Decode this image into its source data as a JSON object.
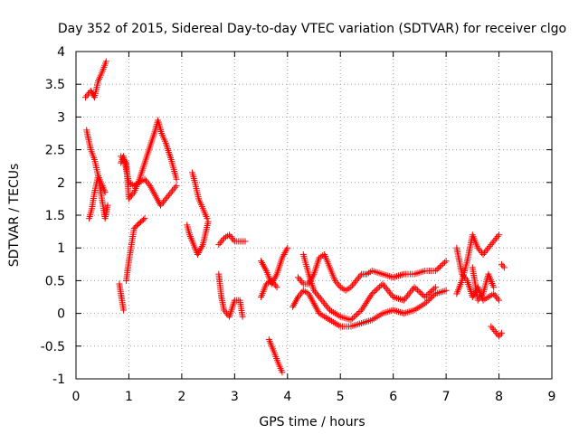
{
  "chart_data": {
    "type": "scatter",
    "title": "Day 352 of 2015, Sidereal Day-to-day VTEC variation (SDTVAR) for receiver clgo",
    "xlabel": "GPS time / hours",
    "ylabel": "SDTVAR / TECUs",
    "xlim": [
      0,
      9
    ],
    "ylim": [
      -1,
      4
    ],
    "grid": true,
    "marker": "+",
    "color": "#ff0000",
    "xticks": [
      0,
      1,
      2,
      3,
      4,
      5,
      6,
      7,
      8,
      9
    ],
    "xtick_labels": [
      "0",
      "1",
      "2",
      "3",
      "4",
      "5",
      "6",
      "7",
      "8",
      "9"
    ],
    "yticks": [
      -1,
      -0.5,
      0,
      0.5,
      1,
      1.5,
      2,
      2.5,
      3,
      3.5,
      4
    ],
    "ytick_labels": [
      "-1",
      "-0.5",
      "0",
      "0.5",
      "1",
      "1.5",
      "2",
      "2.5",
      "3",
      "3.5",
      "4"
    ],
    "tracks": [
      [
        [
          0.18,
          3.3
        ],
        [
          0.28,
          3.4
        ],
        [
          0.35,
          3.3
        ],
        [
          0.42,
          3.55
        ],
        [
          0.5,
          3.7
        ],
        [
          0.57,
          3.85
        ]
      ],
      [
        [
          0.2,
          2.8
        ],
        [
          0.28,
          2.5
        ],
        [
          0.35,
          2.35
        ],
        [
          0.42,
          2.1
        ],
        [
          0.5,
          1.95
        ],
        [
          0.55,
          1.85
        ]
      ],
      [
        [
          0.25,
          1.45
        ],
        [
          0.3,
          1.6
        ],
        [
          0.35,
          1.85
        ],
        [
          0.42,
          2.1
        ],
        [
          0.5,
          1.7
        ],
        [
          0.55,
          1.45
        ],
        [
          0.6,
          1.65
        ]
      ],
      [
        [
          0.82,
          0.45
        ],
        [
          0.86,
          0.25
        ],
        [
          0.9,
          0.05
        ]
      ],
      [
        [
          0.85,
          2.3
        ],
        [
          0.9,
          2.4
        ],
        [
          0.95,
          2.2
        ],
        [
          1.0,
          2.0
        ],
        [
          1.1,
          1.95
        ],
        [
          1.2,
          2.0
        ],
        [
          1.3,
          2.05
        ],
        [
          1.4,
          1.95
        ],
        [
          1.5,
          1.8
        ],
        [
          1.6,
          1.65
        ],
        [
          1.7,
          1.75
        ],
        [
          1.8,
          1.85
        ],
        [
          1.9,
          1.95
        ]
      ],
      [
        [
          0.85,
          2.4
        ],
        [
          0.95,
          2.3
        ],
        [
          1.0,
          1.75
        ],
        [
          1.1,
          1.85
        ],
        [
          1.2,
          2.05
        ],
        [
          1.3,
          2.3
        ],
        [
          1.4,
          2.55
        ],
        [
          1.5,
          2.8
        ],
        [
          1.55,
          2.95
        ],
        [
          1.62,
          2.75
        ],
        [
          1.7,
          2.6
        ],
        [
          1.8,
          2.35
        ],
        [
          1.9,
          2.05
        ]
      ],
      [
        [
          0.95,
          0.5
        ],
        [
          1.0,
          0.8
        ],
        [
          1.05,
          1.05
        ],
        [
          1.1,
          1.3
        ],
        [
          1.2,
          1.38
        ],
        [
          1.3,
          1.45
        ]
      ],
      [
        [
          2.1,
          1.35
        ],
        [
          2.15,
          1.2
        ],
        [
          2.2,
          1.1
        ],
        [
          2.3,
          0.9
        ],
        [
          2.4,
          1.05
        ],
        [
          2.5,
          1.4
        ]
      ],
      [
        [
          2.2,
          2.15
        ],
        [
          2.25,
          2.0
        ],
        [
          2.32,
          1.75
        ],
        [
          2.4,
          1.6
        ],
        [
          2.48,
          1.45
        ]
      ],
      [
        [
          2.7,
          1.05
        ],
        [
          2.8,
          1.15
        ],
        [
          2.9,
          1.2
        ],
        [
          3.0,
          1.1
        ],
        [
          3.1,
          1.1
        ],
        [
          3.2,
          1.1
        ]
      ],
      [
        [
          2.7,
          0.6
        ],
        [
          2.75,
          0.25
        ],
        [
          2.8,
          0.05
        ],
        [
          2.9,
          -0.05
        ],
        [
          3.0,
          0.2
        ],
        [
          3.1,
          0.2
        ],
        [
          3.15,
          -0.05
        ]
      ],
      [
        [
          3.5,
          0.8
        ],
        [
          3.6,
          0.65
        ],
        [
          3.7,
          0.45
        ],
        [
          3.8,
          0.6
        ],
        [
          3.9,
          0.85
        ],
        [
          4.0,
          1.0
        ]
      ],
      [
        [
          3.5,
          0.25
        ],
        [
          3.6,
          0.45
        ],
        [
          3.7,
          0.5
        ],
        [
          3.8,
          0.4
        ]
      ],
      [
        [
          3.65,
          -0.4
        ],
        [
          3.75,
          -0.6
        ],
        [
          3.82,
          -0.75
        ],
        [
          3.9,
          -0.9
        ]
      ],
      [
        [
          4.2,
          0.55
        ],
        [
          4.3,
          0.45
        ],
        [
          4.4,
          0.45
        ],
        [
          4.5,
          0.6
        ],
        [
          4.6,
          0.85
        ],
        [
          4.7,
          0.9
        ],
        [
          4.8,
          0.7
        ],
        [
          4.9,
          0.5
        ],
        [
          5.0,
          0.4
        ],
        [
          5.1,
          0.35
        ],
        [
          5.2,
          0.4
        ],
        [
          5.3,
          0.5
        ],
        [
          5.4,
          0.6
        ],
        [
          5.5,
          0.6
        ],
        [
          5.6,
          0.65
        ],
        [
          5.8,
          0.6
        ],
        [
          6.0,
          0.55
        ],
        [
          6.2,
          0.6
        ],
        [
          6.4,
          0.6
        ],
        [
          6.6,
          0.65
        ],
        [
          6.8,
          0.65
        ],
        [
          7.0,
          0.8
        ]
      ],
      [
        [
          4.1,
          0.1
        ],
        [
          4.2,
          0.25
        ],
        [
          4.3,
          0.35
        ],
        [
          4.4,
          0.3
        ],
        [
          4.5,
          0.15
        ],
        [
          4.6,
          0.0
        ],
        [
          4.7,
          -0.05
        ],
        [
          4.8,
          -0.1
        ],
        [
          4.9,
          -0.15
        ],
        [
          5.0,
          -0.2
        ],
        [
          5.2,
          -0.2
        ],
        [
          5.4,
          -0.15
        ],
        [
          5.6,
          -0.1
        ],
        [
          5.8,
          0.0
        ],
        [
          6.0,
          0.05
        ],
        [
          6.2,
          0.0
        ],
        [
          6.4,
          0.05
        ],
        [
          6.6,
          0.15
        ],
        [
          6.8,
          0.3
        ],
        [
          7.0,
          0.35
        ]
      ],
      [
        [
          4.3,
          0.9
        ],
        [
          4.4,
          0.6
        ],
        [
          4.5,
          0.35
        ],
        [
          4.6,
          0.25
        ],
        [
          4.7,
          0.15
        ],
        [
          4.8,
          0.05
        ],
        [
          5.0,
          -0.05
        ],
        [
          5.2,
          -0.1
        ],
        [
          5.4,
          0.05
        ],
        [
          5.6,
          0.3
        ],
        [
          5.8,
          0.45
        ],
        [
          6.0,
          0.25
        ],
        [
          6.2,
          0.2
        ],
        [
          6.4,
          0.4
        ],
        [
          6.6,
          0.25
        ],
        [
          6.8,
          0.4
        ]
      ],
      [
        [
          7.2,
          1.0
        ],
        [
          7.3,
          0.6
        ],
        [
          7.4,
          0.5
        ],
        [
          7.5,
          0.25
        ],
        [
          7.6,
          0.4
        ],
        [
          7.7,
          0.2
        ],
        [
          7.8,
          0.25
        ],
        [
          7.9,
          0.3
        ],
        [
          8.0,
          0.2
        ]
      ],
      [
        [
          7.2,
          0.3
        ],
        [
          7.3,
          0.5
        ],
        [
          7.4,
          0.8
        ],
        [
          7.5,
          1.2
        ],
        [
          7.6,
          1.0
        ],
        [
          7.7,
          0.9
        ],
        [
          7.8,
          1.0
        ],
        [
          7.9,
          1.1
        ],
        [
          8.0,
          1.2
        ]
      ],
      [
        [
          7.5,
          0.7
        ],
        [
          7.6,
          0.2
        ],
        [
          7.7,
          0.3
        ],
        [
          7.8,
          0.6
        ],
        [
          7.9,
          0.4
        ]
      ],
      [
        [
          7.85,
          -0.2
        ],
        [
          7.9,
          -0.25
        ],
        [
          7.95,
          -0.3
        ],
        [
          8.0,
          -0.35
        ],
        [
          8.05,
          -0.3
        ]
      ],
      [
        [
          8.05,
          0.75
        ],
        [
          8.1,
          0.7
        ]
      ]
    ]
  }
}
